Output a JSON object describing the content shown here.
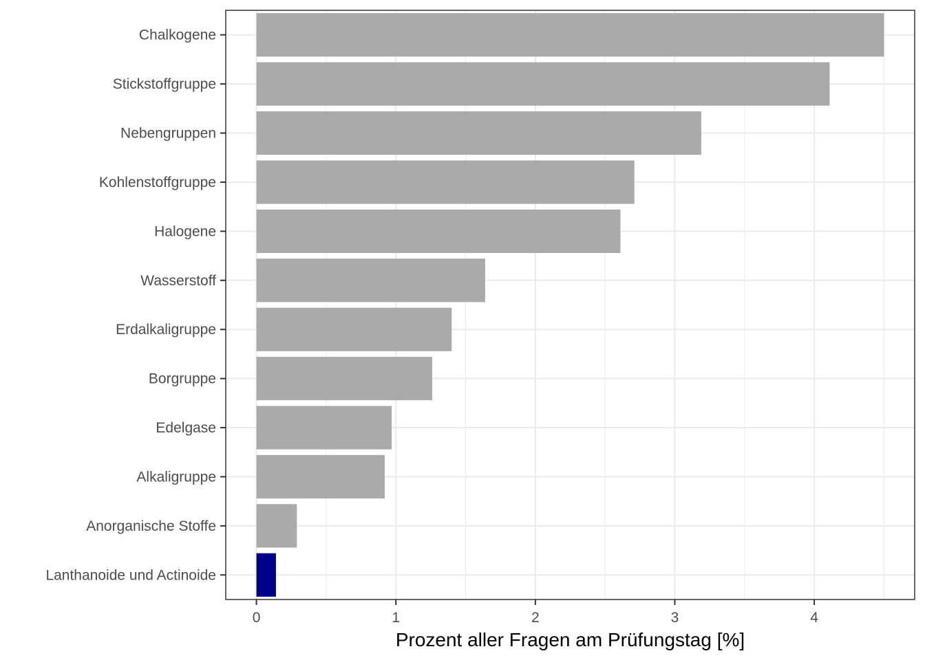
{
  "chart_data": {
    "type": "bar",
    "orientation": "horizontal",
    "xlabel": "Prozent aller Fragen am Prüfungstag [%]",
    "ylabel": "",
    "xlim": [
      -0.22,
      4.72
    ],
    "xticks": [
      0,
      1,
      2,
      3,
      4
    ],
    "grid": true,
    "categories": [
      "Chalkogene",
      "Stickstoffgruppe",
      "Nebengruppen",
      "Kohlenstoffgruppe",
      "Halogene",
      "Wasserstoff",
      "Erdalkaligruppe",
      "Borgruppe",
      "Edelgase",
      "Alkaligruppe",
      "Anorganische Stoffe",
      "Lanthanoide und Actinoide"
    ],
    "values": [
      4.5,
      4.11,
      3.19,
      2.71,
      2.61,
      1.64,
      1.4,
      1.26,
      0.97,
      0.92,
      0.29,
      0.14
    ],
    "colors": [
      "#aaaaaa",
      "#aaaaaa",
      "#aaaaaa",
      "#aaaaaa",
      "#aaaaaa",
      "#aaaaaa",
      "#aaaaaa",
      "#aaaaaa",
      "#aaaaaa",
      "#aaaaaa",
      "#aaaaaa",
      "#00008b"
    ]
  }
}
